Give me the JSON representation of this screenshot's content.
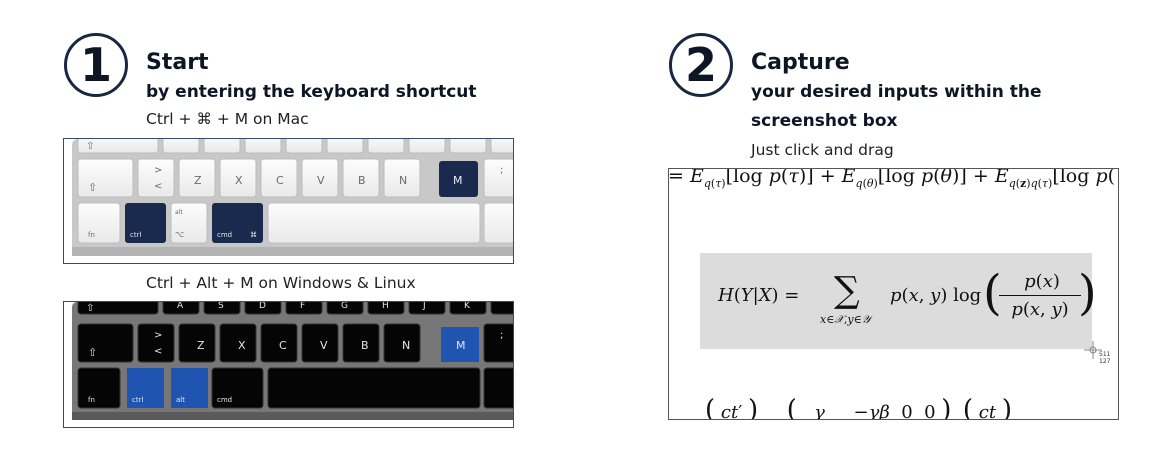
{
  "step1": {
    "number": "1",
    "title": "Start",
    "subtitle": "by entering the keyboard shortcut",
    "mac_hint": "Ctrl + ⌘ + M on Mac",
    "win_hint": "Ctrl + Alt + M on Windows & Linux"
  },
  "step2": {
    "number": "2",
    "title": "Capture",
    "subtitle_line1": "your desired inputs within the",
    "subtitle_line2": "screenshot box",
    "hint": "Just click and drag"
  },
  "mac_keyboard": {
    "row1": [
      "<",
      "Z",
      "X",
      "C",
      "V",
      "B",
      "N",
      "M"
    ],
    "row1_angle_top": ">",
    "shift_glyph": "⇧",
    "fn": "fn",
    "ctrl": "ctrl",
    "alt": "alt",
    "alt_glyph": "⌥",
    "cmd": "cmd",
    "cmd_glyph": "⌘",
    "semicolon": ";",
    "highlight_color": "#1a2a4e"
  },
  "win_keyboard": {
    "top_row": [
      "A",
      "S",
      "D",
      "F",
      "G",
      "H",
      "J",
      "K"
    ],
    "row1": [
      "<",
      "Z",
      "X",
      "C",
      "V",
      "B",
      "N",
      "M"
    ],
    "row1_angle_top": ">",
    "shift_glyph": "⇧",
    "fn": "fn",
    "ctrl": "ctrl",
    "alt": "alt",
    "cmd": "cmd",
    "semicolon": ";",
    "highlight_color": "#1f55b0"
  },
  "screenshot": {
    "top_formula": "= E_{q(τ)}[log p(τ)] + E_{q(θ)}[log p(θ)] + E_{q(z)q(τ)}[log p(",
    "main_formula": "H(Y|X) = ∑_{x∈X, y∈Y} p(x, y) log ( p(x) / p(x, y) )",
    "cursor_x": "511",
    "cursor_y": "127",
    "bottom_formula": "( ct′ )   ( γ   −γβ  0  0 )  ( ct )"
  }
}
